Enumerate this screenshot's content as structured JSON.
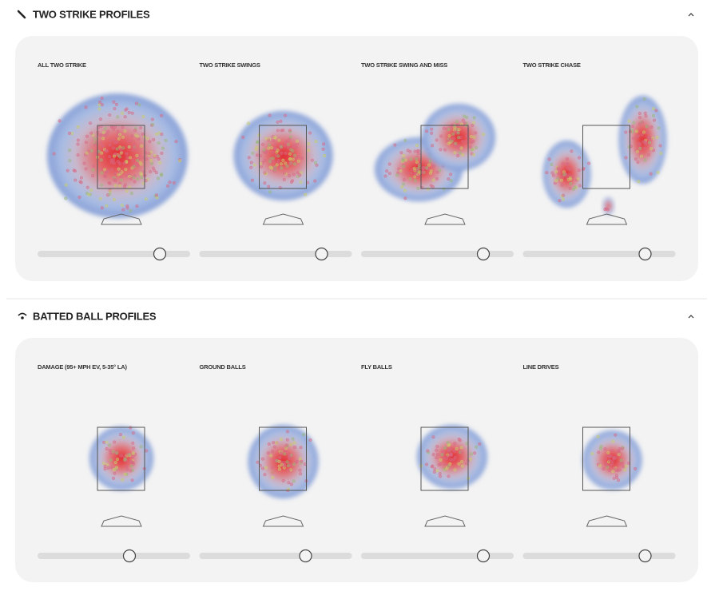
{
  "sections": [
    {
      "title": "TWO STRIKE PROFILES",
      "panels": [
        {
          "title": "ALL TWO STRIKE"
        },
        {
          "title": "TWO STRIKE SWINGS"
        },
        {
          "title": "TWO STRIKE SWING AND MISS"
        },
        {
          "title": "TWO STRIKE CHASE"
        }
      ]
    },
    {
      "title": "BATTED BALL PROFILES",
      "panels": [
        {
          "title": "DAMAGE (95+ MPH EV, 5-35° LA)"
        },
        {
          "title": "GROUND BALLS"
        },
        {
          "title": "FLY BALLS"
        },
        {
          "title": "LINE DRIVES"
        }
      ]
    }
  ]
}
